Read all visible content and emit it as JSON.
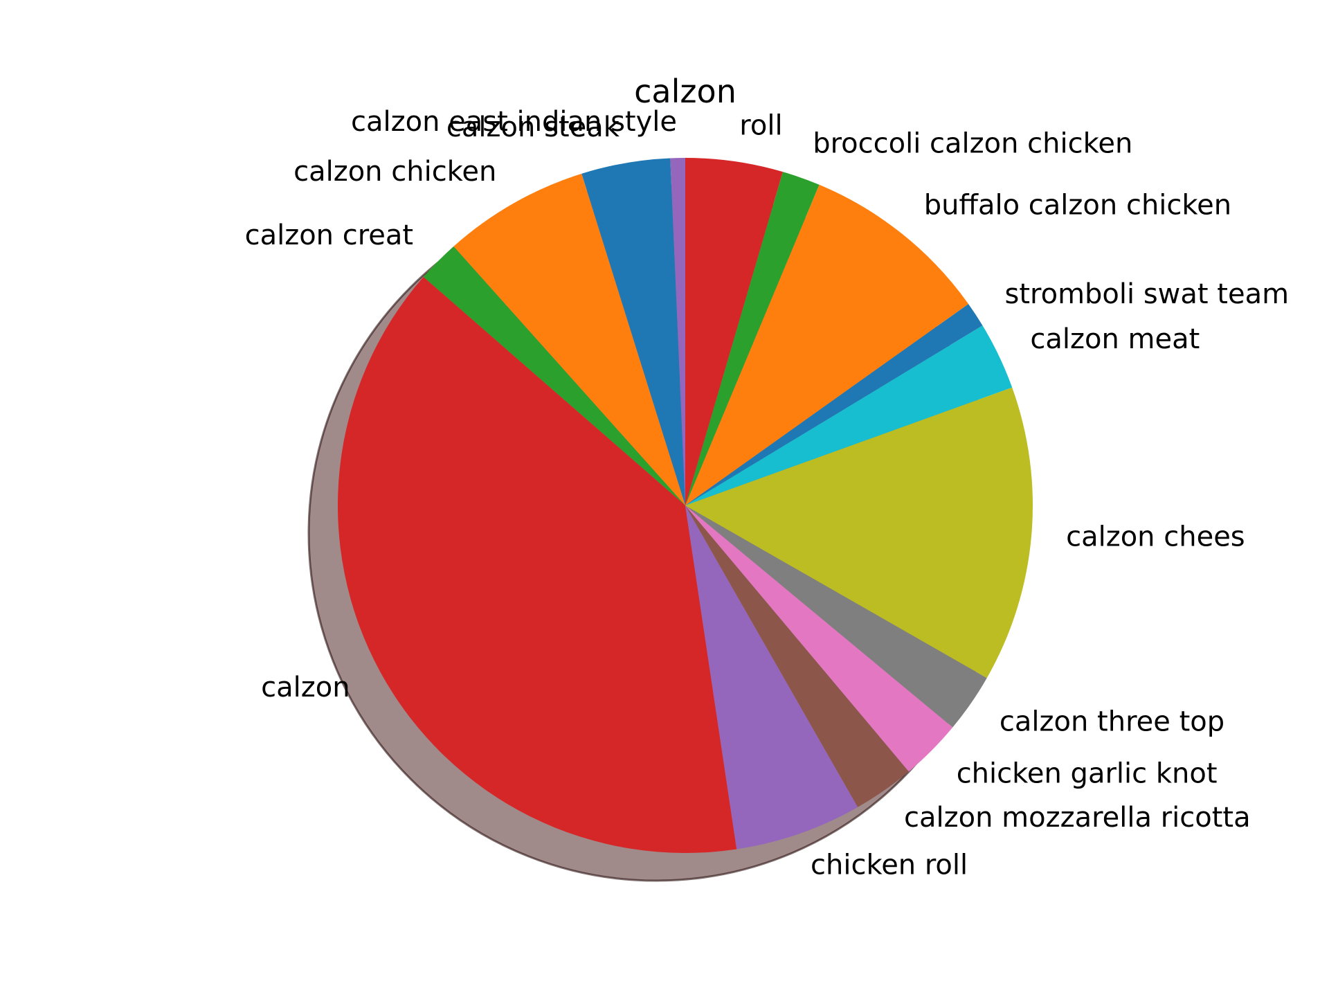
{
  "chart_data": {
    "type": "pie",
    "title": "calzon",
    "shadow": true,
    "start": "counterclockwise from top",
    "labels": [
      "calzon east indian style",
      "calzon steak",
      "calzon chicken",
      "calzon creat",
      "calzon",
      "chicken roll",
      "calzon mozzarella ricotta",
      "chicken garlic knot",
      "calzon three top",
      "calzon chees",
      "calzon meat",
      "stromboli swat team",
      "buffalo calzon chicken",
      "broccoli calzon chicken",
      "roll"
    ],
    "values": [
      0.7,
      4.2,
      6.9,
      2.0,
      39.4,
      6.0,
      2.9,
      2.9,
      2.8,
      14.0,
      3.2,
      1.2,
      9.0,
      1.8,
      4.6
    ],
    "colors": [
      "#9467bd",
      "#1f77b4",
      "#ff7f0e",
      "#2ca02c",
      "#d62728",
      "#9467bd",
      "#8c564b",
      "#e377c2",
      "#7f7f7f",
      "#bcbd22",
      "#17becf",
      "#1f77b4",
      "#ff7f0e",
      "#2ca02c",
      "#d62728"
    ]
  }
}
